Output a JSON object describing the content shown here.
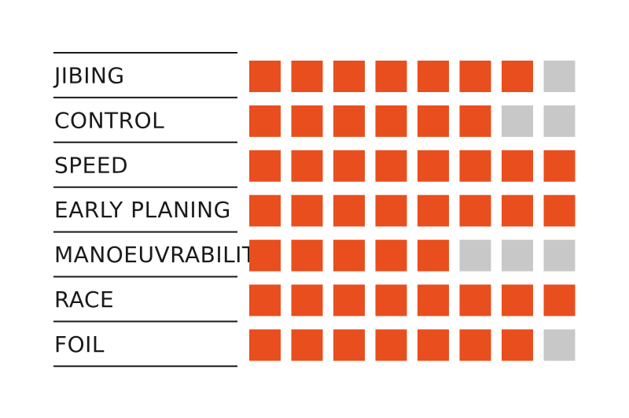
{
  "chart_data": {
    "type": "table",
    "scale_max": 8,
    "rows": [
      {
        "label": "JIBING",
        "value": 7
      },
      {
        "label": "CONTROL",
        "value": 6
      },
      {
        "label": "SPEED",
        "value": 8
      },
      {
        "label": "EARLY PLANING",
        "value": 8
      },
      {
        "label": "MANOEUVRABILITY",
        "value": 5
      },
      {
        "label": "RACE",
        "value": 8
      },
      {
        "label": "FOIL",
        "value": 7
      }
    ],
    "colors": {
      "filled": "#e94e1e",
      "empty": "#c8c8c8",
      "rule": "#1a1a1a"
    }
  }
}
